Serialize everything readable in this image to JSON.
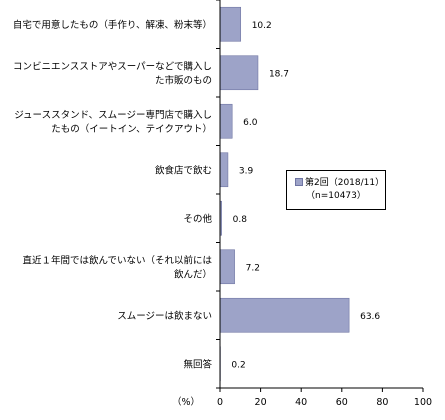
{
  "chart_data": {
    "type": "bar",
    "orientation": "horizontal",
    "categories": [
      [
        "自宅で用意したもの（手作り、解凍、粉末等）"
      ],
      [
        "コンビニエンスストアやスーパーなどで購入し",
        "た市販のもの"
      ],
      [
        "ジューススタンド、スムージー専門店で購入し",
        "たもの（イートイン、テイクアウト）"
      ],
      [
        "飲食店で飲む"
      ],
      [
        "その他"
      ],
      [
        "直近１年間では飲んでいない（それ以前には",
        "飲んだ）"
      ],
      [
        "スムージーは飲まない"
      ],
      [
        "無回答"
      ]
    ],
    "series": [
      {
        "name": "第2回（2018/11）\n（n=10473）",
        "values": [
          10.2,
          18.7,
          6.0,
          3.9,
          0.8,
          7.2,
          63.6,
          0.2
        ],
        "value_labels": [
          "10.2",
          "18.7",
          "6.0",
          "3.9",
          "0.8",
          "7.2",
          "63.6",
          "0.2"
        ],
        "color": "#9da3c8"
      }
    ],
    "xlim": [
      0,
      100
    ],
    "x_ticks": [
      "0",
      "20",
      "40",
      "60",
      "80",
      "100"
    ],
    "xlabel": "（%）",
    "legend": {
      "position": "center-right",
      "line1": "第2回（2018/11）",
      "line2": "（n=10473）"
    },
    "grid": false
  }
}
